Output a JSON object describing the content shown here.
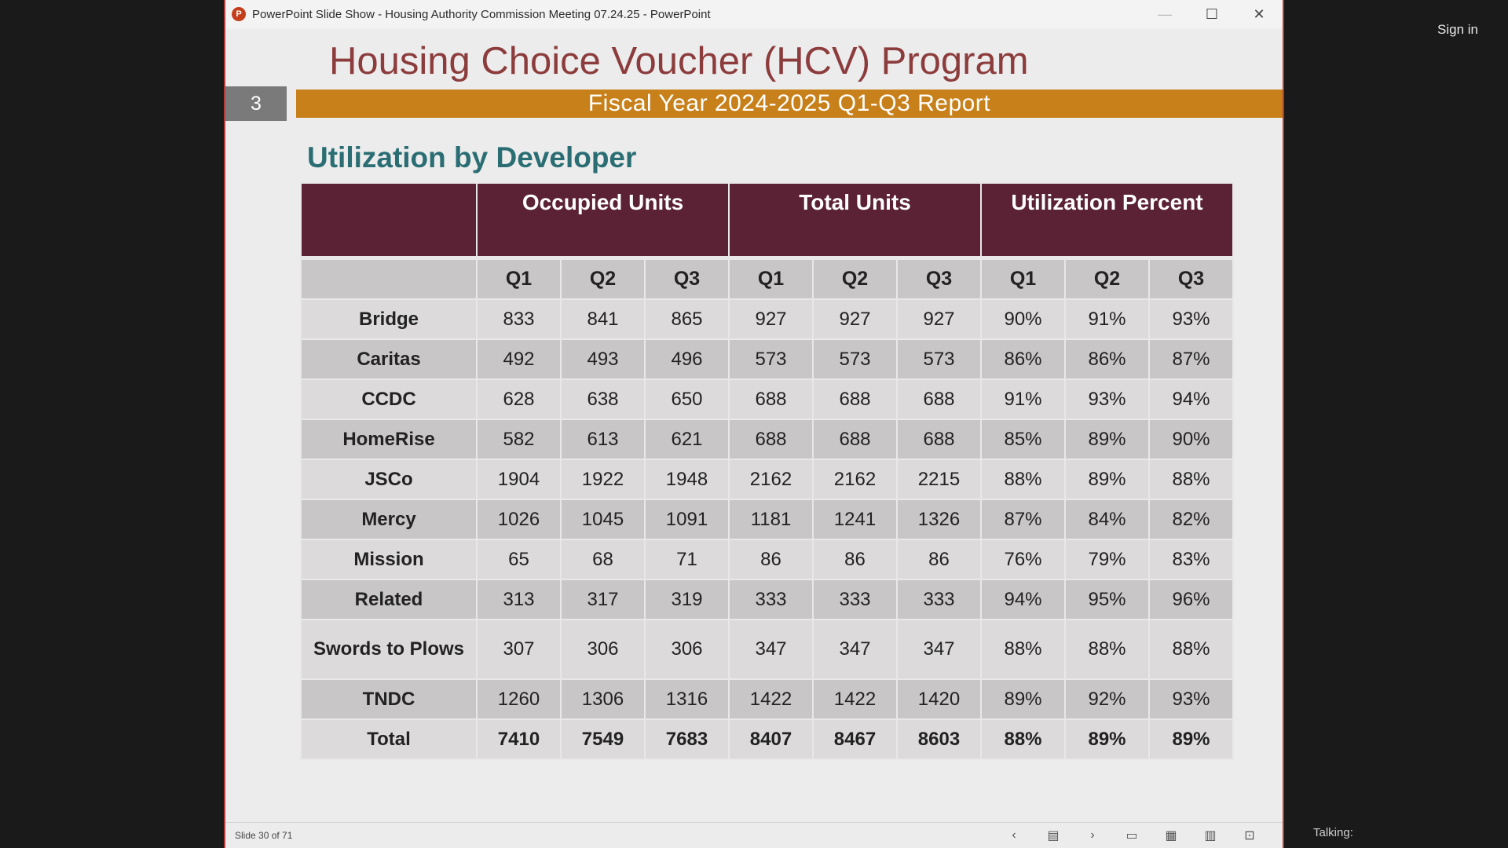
{
  "window": {
    "title": "PowerPoint Slide Show  -  Housing Authority Commission Meeting 07.24.25 - PowerPoint",
    "app_icon": "P",
    "minimize": "—",
    "maximize": "☐",
    "close": "✕"
  },
  "overlay": {
    "sign_in": "Sign in",
    "talking": "Talking:"
  },
  "slide": {
    "title": "Housing Choice Voucher (HCV) Program",
    "number": "3",
    "subtitle": "Fiscal Year 2024-2025 Q1-Q3 Report",
    "section": "Utilization by Developer",
    "table": {
      "groups": [
        "",
        "Occupied Units",
        "Total Units",
        "Utilization Percent"
      ],
      "subheaders": [
        "",
        "Q1",
        "Q2",
        "Q3",
        "Q1",
        "Q2",
        "Q3",
        "Q1",
        "Q2",
        "Q3"
      ],
      "rows": [
        [
          "Bridge",
          "833",
          "841",
          "865",
          "927",
          "927",
          "927",
          "90%",
          "91%",
          "93%"
        ],
        [
          "Caritas",
          "492",
          "493",
          "496",
          "573",
          "573",
          "573",
          "86%",
          "86%",
          "87%"
        ],
        [
          "CCDC",
          "628",
          "638",
          "650",
          "688",
          "688",
          "688",
          "91%",
          "93%",
          "94%"
        ],
        [
          "HomeRise",
          "582",
          "613",
          "621",
          "688",
          "688",
          "688",
          "85%",
          "89%",
          "90%"
        ],
        [
          "JSCo",
          "1904",
          "1922",
          "1948",
          "2162",
          "2162",
          "2215",
          "88%",
          "89%",
          "88%"
        ],
        [
          "Mercy",
          "1026",
          "1045",
          "1091",
          "1181",
          "1241",
          "1326",
          "87%",
          "84%",
          "82%"
        ],
        [
          "Mission",
          "65",
          "68",
          "71",
          "86",
          "86",
          "86",
          "76%",
          "79%",
          "83%"
        ],
        [
          "Related",
          "313",
          "317",
          "319",
          "333",
          "333",
          "333",
          "94%",
          "95%",
          "96%"
        ],
        [
          "Swords to Plows",
          "307",
          "306",
          "306",
          "347",
          "347",
          "347",
          "88%",
          "88%",
          "88%"
        ],
        [
          "TNDC",
          "1260",
          "1306",
          "1316",
          "1422",
          "1422",
          "1420",
          "89%",
          "92%",
          "93%"
        ]
      ],
      "total": [
        "Total",
        "7410",
        "7549",
        "7683",
        "8407",
        "8467",
        "8603",
        "88%",
        "89%",
        "89%"
      ]
    }
  },
  "statusbar": {
    "slide_counter": "Slide 30 of 71",
    "icons": [
      "previous-icon",
      "slide-menu-icon",
      "next-icon",
      "normal-view-icon",
      "slide-sorter-icon",
      "reading-view-icon",
      "slideshow-icon"
    ]
  },
  "colors": {
    "title": "#8c3c3c",
    "banner": "#c8801a",
    "section": "#2a6e74",
    "table_header": "#5b2235"
  }
}
